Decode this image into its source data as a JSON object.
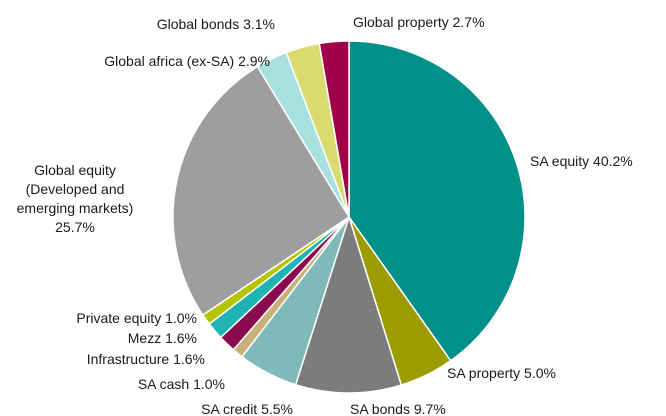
{
  "chart_data": {
    "type": "pie",
    "title": "",
    "start": "12 o'clock",
    "direction": "clockwise",
    "slices": [
      {
        "label": [
          "SA equity 40.2%"
        ],
        "value": 40.2,
        "color": "#00908A"
      },
      {
        "label": [
          "SA property 5.0%"
        ],
        "value": 5.0,
        "color": "#9C9C00"
      },
      {
        "label": [
          "SA bonds 9.7%"
        ],
        "value": 9.7,
        "color": "#7C7C7C"
      },
      {
        "label": [
          "SA credit 5.5%"
        ],
        "value": 5.5,
        "color": "#7FBABA"
      },
      {
        "label": [
          "SA cash 1.0%"
        ],
        "value": 1.0,
        "color": "#C7B17A"
      },
      {
        "label": [
          "Infrastructure 1.6%"
        ],
        "value": 1.6,
        "color": "#8B0A4F"
      },
      {
        "label": [
          "Mezz 1.6%"
        ],
        "value": 1.6,
        "color": "#1FB3B3"
      },
      {
        "label": [
          "Private equity 1.0%"
        ],
        "value": 1.0,
        "color": "#B5C400"
      },
      {
        "label": [
          "Global equity",
          "(Developed and",
          "emerging markets)",
          "25.7%"
        ],
        "value": 25.7,
        "color": "#9E9E9E"
      },
      {
        "label": [
          "Global africa (ex-SA) 2.9%"
        ],
        "value": 2.9,
        "color": "#A8E0E0"
      },
      {
        "label": [
          "Global bonds 3.1%"
        ],
        "value": 3.1,
        "color": "#D9DB6E"
      },
      {
        "label": [
          "Global property 2.7%"
        ],
        "value": 2.7,
        "color": "#A0004A"
      }
    ]
  }
}
